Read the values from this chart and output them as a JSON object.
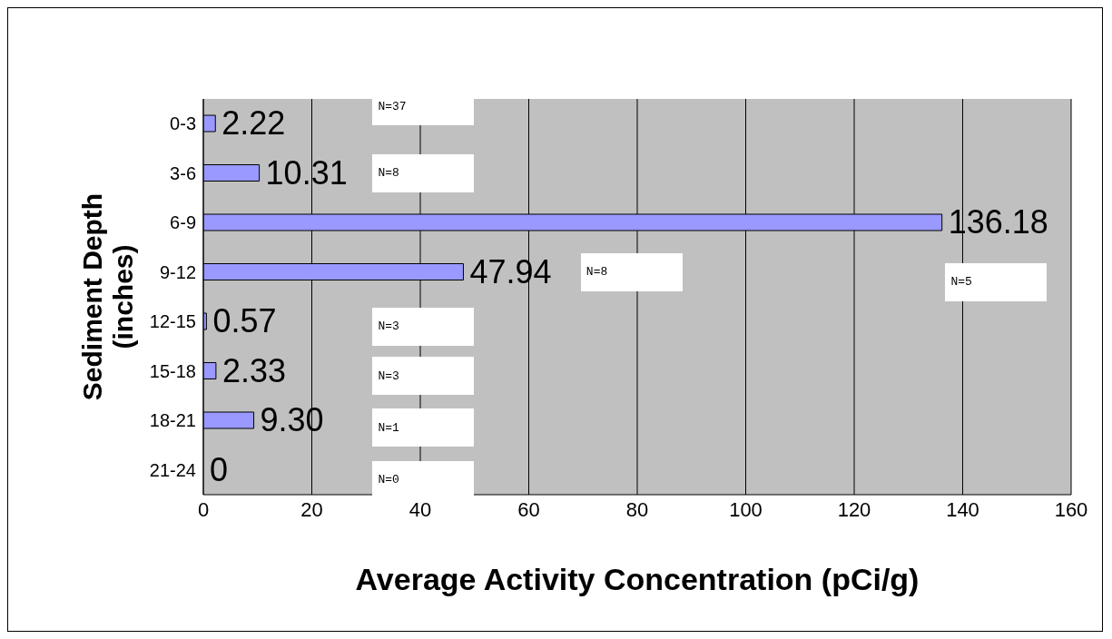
{
  "chart_data": {
    "type": "bar",
    "orientation": "horizontal",
    "xlabel": "Average Activity Concentration (pCi/g)",
    "ylabel": "Sediment Depth (inches)",
    "categories": [
      "0-3",
      "3-6",
      "6-9",
      "9-12",
      "12-15",
      "15-18",
      "18-21",
      "21-24"
    ],
    "values": [
      2.22,
      10.31,
      136.18,
      47.94,
      0.57,
      2.33,
      9.3,
      0
    ],
    "value_labels": [
      "2.22",
      "10.31",
      "136.18",
      "47.94",
      "0.57",
      "2.33",
      "9.30",
      "0"
    ],
    "color": "#9999ff",
    "xlim": [
      0,
      160
    ],
    "xticks": [
      0,
      20,
      40,
      60,
      80,
      100,
      120,
      140,
      160
    ],
    "grid": "x",
    "annotations": [
      "N=37",
      "N=8",
      "N=8",
      "N=5",
      "N=3",
      "N=3",
      "N=1",
      "N=0"
    ]
  }
}
